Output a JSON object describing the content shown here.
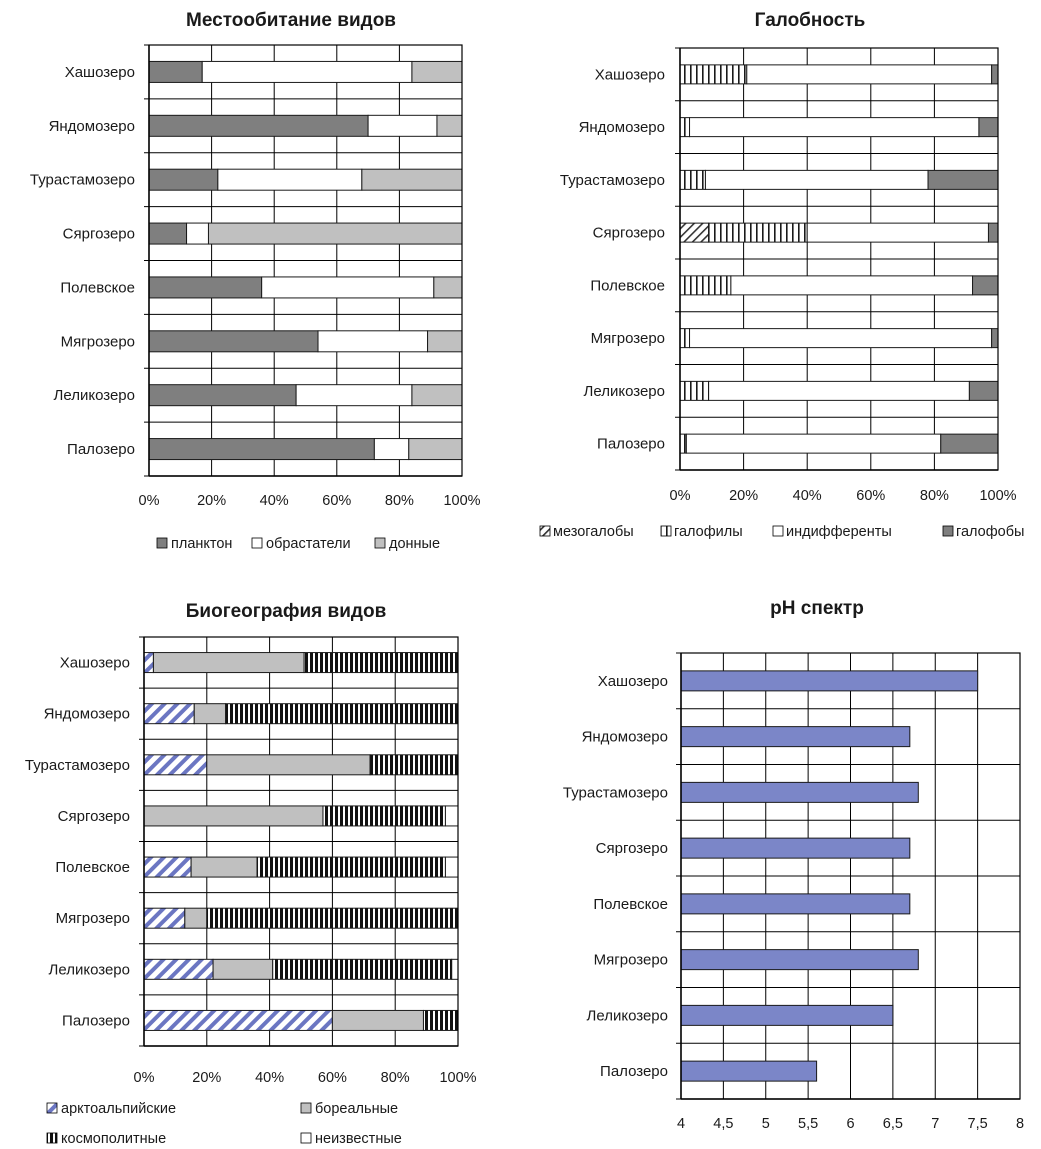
{
  "figure": {
    "background": "#ffffff"
  },
  "chart_data": [
    {
      "id": "habitat",
      "type": "bar",
      "orientation": "horizontal",
      "stacked": "percent",
      "title": "Местообитание видов",
      "categories": [
        "Хашозеро",
        "Яндомозеро",
        "Турастамозеро",
        "Сяргозеро",
        "Полевское",
        "Мягрозеро",
        "Леликозеро",
        "Палозеро"
      ],
      "series": [
        {
          "name": "планктон",
          "color": "#7f7f7f",
          "pattern": "solid",
          "values": [
            17,
            70,
            22,
            12,
            36,
            54,
            47,
            72
          ]
        },
        {
          "name": "обрастатели",
          "color": "#ffffff",
          "pattern": "solid",
          "values": [
            67,
            22,
            46,
            7,
            55,
            35,
            37,
            11
          ]
        },
        {
          "name": "донные",
          "color": "#c0c0c0",
          "pattern": "solid",
          "values": [
            16,
            8,
            32,
            81,
            9,
            11,
            16,
            17
          ]
        }
      ],
      "xlim": [
        0,
        100
      ],
      "xticks": [
        "0%",
        "20%",
        "40%",
        "60%",
        "80%",
        "100%"
      ],
      "grid": true,
      "legend_position": "bottom"
    },
    {
      "id": "salinity",
      "type": "bar",
      "orientation": "horizontal",
      "stacked": "percent",
      "title": "Галобность",
      "categories": [
        "Хашозеро",
        "Яндомозеро",
        "Турастамозеро",
        "Сяргозеро",
        "Полевское",
        "Мягрозеро",
        "Леликозеро",
        "Палозеро"
      ],
      "series": [
        {
          "name": "мезогалобы",
          "color": "#ffffff",
          "pattern": "diagonal",
          "values": [
            0,
            0,
            0,
            9,
            0,
            0,
            0,
            0
          ]
        },
        {
          "name": "галофилы",
          "color": "#ffffff",
          "pattern": "vertical",
          "values": [
            21,
            3,
            8,
            31,
            16,
            3,
            9,
            2
          ]
        },
        {
          "name": "индифференты",
          "color": "#ffffff",
          "pattern": "solid",
          "values": [
            77,
            91,
            70,
            57,
            76,
            95,
            82,
            80
          ]
        },
        {
          "name": "галофобы",
          "color": "#7f7f7f",
          "pattern": "solid",
          "values": [
            2,
            6,
            22,
            3,
            8,
            2,
            9,
            18
          ]
        }
      ],
      "xlim": [
        0,
        100
      ],
      "xticks": [
        "0%",
        "20%",
        "40%",
        "60%",
        "80%",
        "100%"
      ],
      "grid": true,
      "legend_position": "bottom"
    },
    {
      "id": "biogeography",
      "type": "bar",
      "orientation": "horizontal",
      "stacked": "percent",
      "title": "Биогеография видов",
      "categories": [
        "Хашозеро",
        "Яндомозеро",
        "Турастамозеро",
        "Сяргозеро",
        "Полевское",
        "Мягрозеро",
        "Леликозеро",
        "Палозеро"
      ],
      "series": [
        {
          "name": "арктоальпийские",
          "color": "#6b76c2",
          "pattern": "diagonal",
          "values": [
            3,
            16,
            20,
            0,
            15,
            13,
            22,
            60
          ]
        },
        {
          "name": "бореальные",
          "color": "#c0c0c0",
          "pattern": "solid",
          "values": [
            48,
            10,
            52,
            57,
            21,
            7,
            19,
            29
          ]
        },
        {
          "name": "космополитные",
          "color": "#000000",
          "pattern": "vertical",
          "values": [
            49,
            74,
            28,
            39,
            60,
            80,
            57,
            11
          ]
        },
        {
          "name": "неизвестные",
          "color": "#ffffff",
          "pattern": "solid",
          "values": [
            0,
            0,
            0,
            4,
            4,
            0,
            2,
            0
          ]
        }
      ],
      "xlim": [
        0,
        100
      ],
      "xticks": [
        "0%",
        "20%",
        "40%",
        "60%",
        "80%",
        "100%"
      ],
      "grid": true,
      "legend_position": "bottom"
    },
    {
      "id": "ph",
      "type": "bar",
      "orientation": "horizontal",
      "title": "pH спектр",
      "categories": [
        "Хашозеро",
        "Яндомозеро",
        "Турастамозеро",
        "Сяргозеро",
        "Полевское",
        "Мягрозеро",
        "Леликозеро",
        "Палозеро"
      ],
      "series": [
        {
          "name": "",
          "color": "#7b86c8",
          "pattern": "solid",
          "values": [
            7.5,
            6.7,
            6.8,
            6.7,
            6.7,
            6.8,
            6.5,
            5.6
          ]
        }
      ],
      "xlim": [
        4,
        8
      ],
      "xticks": [
        "4",
        "4,5",
        "5",
        "5,5",
        "6",
        "6,5",
        "7",
        "7,5",
        "8"
      ],
      "grid": true,
      "legend_position": "none"
    }
  ]
}
